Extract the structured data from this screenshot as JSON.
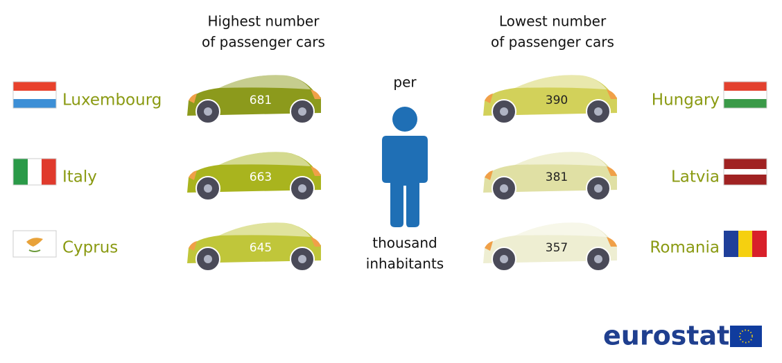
{
  "highest": {
    "heading": [
      "Highest number",
      "of passenger cars"
    ],
    "countries": [
      {
        "name": "Luxembourg",
        "cars": 681
      },
      {
        "name": "Italy",
        "cars": 663
      },
      {
        "name": "Cyprus",
        "cars": 645
      }
    ]
  },
  "lowest": {
    "heading": [
      "Lowest number",
      "of passenger cars"
    ],
    "countries": [
      {
        "name": "Hungary",
        "cars": 390
      },
      {
        "name": "Latvia",
        "cars": 381
      },
      {
        "name": "Romania",
        "cars": 357
      }
    ]
  },
  "center": {
    "top": "per",
    "bottom": [
      "thousand",
      "inhabitants"
    ]
  },
  "logo": "eurostat"
}
